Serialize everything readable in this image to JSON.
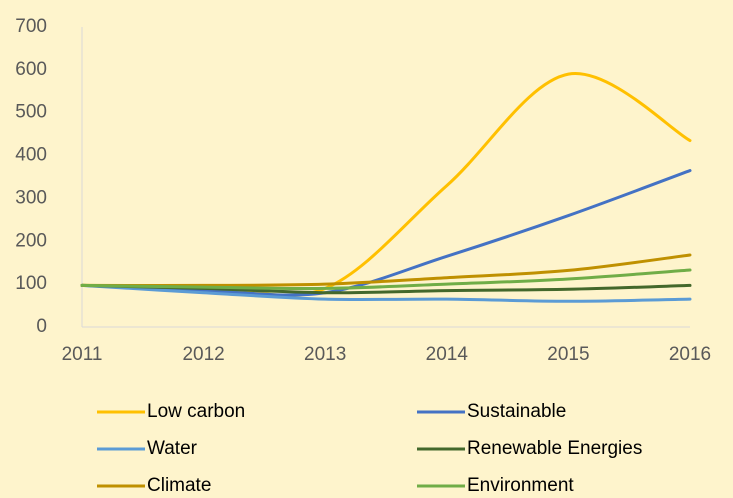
{
  "chart_data": {
    "type": "line",
    "categories": [
      "2011",
      "2012",
      "2013",
      "2014",
      "2015",
      "2016"
    ],
    "series": [
      {
        "name": "Low carbon",
        "color": "#ffc000",
        "values": [
          97,
          95,
          90,
          330,
          590,
          435
        ]
      },
      {
        "name": "Sustainable",
        "color": "#4472c4",
        "values": [
          97,
          85,
          80,
          165,
          260,
          365
        ]
      },
      {
        "name": "Water",
        "color": "#5b9bd5",
        "values": [
          97,
          80,
          65,
          65,
          60,
          65
        ]
      },
      {
        "name": "Renewable Energies",
        "color": "#43682b",
        "values": [
          97,
          90,
          80,
          85,
          88,
          97
        ]
      },
      {
        "name": "Climate",
        "color": "#bf9000",
        "values": [
          97,
          97,
          100,
          115,
          132,
          168
        ]
      },
      {
        "name": "Environment",
        "color": "#70ad47",
        "values": [
          97,
          93,
          90,
          100,
          112,
          133
        ]
      }
    ],
    "ylim": [
      0,
      700
    ],
    "yticks": [
      0,
      100,
      200,
      300,
      400,
      500,
      600,
      700
    ],
    "grid": false
  }
}
